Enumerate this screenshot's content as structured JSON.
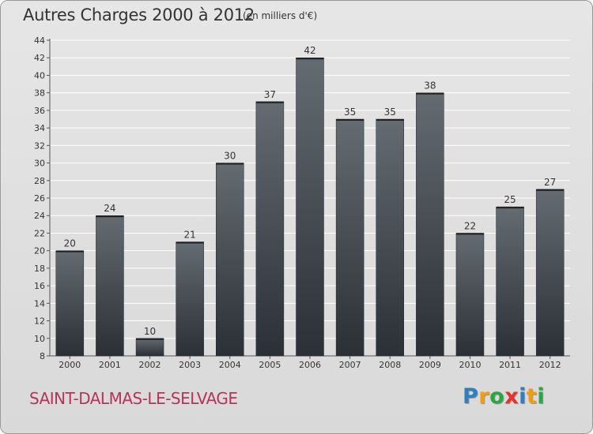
{
  "header": {
    "title": "Autres Charges 2000 à 2012",
    "subtitle": "(en milliers d'€)"
  },
  "footer": {
    "commune": "SAINT-DALMAS-LE-SELVAGE",
    "logo_letters": [
      {
        "char": "P",
        "color": "#2e7fc1"
      },
      {
        "char": "r",
        "color": "#f39c12"
      },
      {
        "char": "o",
        "color": "#27a844"
      },
      {
        "char": "x",
        "color": "#e5332a"
      },
      {
        "char": "i",
        "color": "#2e7fc1"
      },
      {
        "char": "t",
        "color": "#f39c12"
      },
      {
        "char": "i",
        "color": "#27a844"
      }
    ]
  },
  "chart_data": {
    "type": "bar",
    "title": "Autres Charges 2000 à 2012",
    "subtitle": "(en milliers d'€)",
    "categories": [
      "2000",
      "2001",
      "2002",
      "2003",
      "2004",
      "2005",
      "2006",
      "2007",
      "2008",
      "2009",
      "2010",
      "2011",
      "2012"
    ],
    "values": [
      20,
      24,
      10,
      21,
      30,
      37,
      42,
      35,
      35,
      38,
      22,
      25,
      27
    ],
    "ylim": [
      8,
      44
    ],
    "yticks": [
      8,
      10,
      12,
      14,
      16,
      18,
      20,
      22,
      24,
      26,
      28,
      30,
      32,
      34,
      36,
      38,
      40,
      42,
      44
    ],
    "grid": true,
    "colors": {
      "bar_top": "#646b72",
      "bar_bottom": "#2b3036",
      "grid": "#ffffff",
      "text": "#333333"
    }
  }
}
